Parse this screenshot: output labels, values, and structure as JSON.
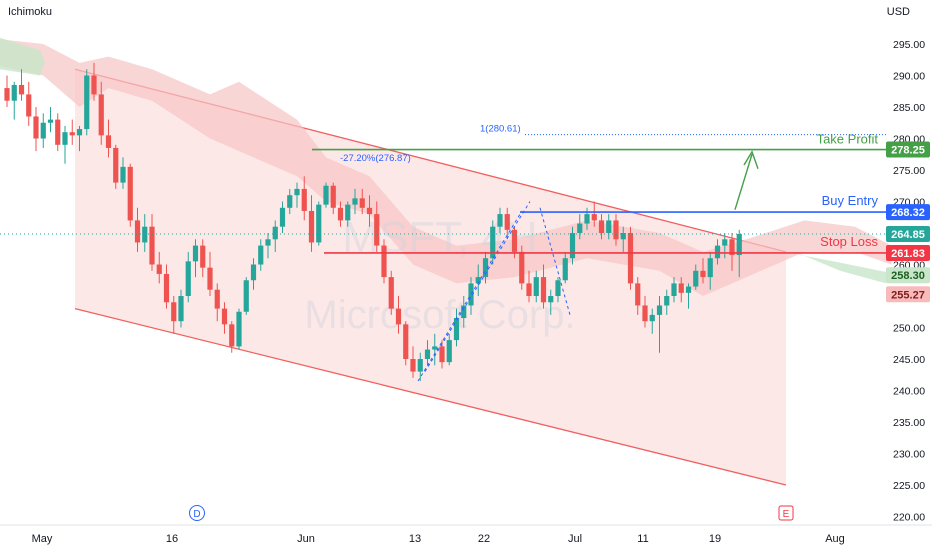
{
  "indicator": "Ichimoku",
  "currency": "USD",
  "watermark": {
    "symbol": "MSFT, 4H",
    "company": "Microsoft Corp."
  },
  "chart_data": {
    "type": "candlestick",
    "price_range": [
      218,
      300
    ],
    "y_ticks": [
      220,
      225,
      230,
      235,
      240,
      245,
      250,
      255,
      260,
      265,
      270,
      275,
      280,
      285,
      290,
      295
    ],
    "x_ticks": [
      "May",
      "16",
      "Jun",
      "13",
      "22",
      "Jul",
      "11",
      "19",
      "Aug"
    ],
    "colors": {
      "up": "#26a69a",
      "down": "#ef5350",
      "cloud": "#f7c5c5",
      "channel_fill": "#fde5e5",
      "channel_line": "#f06060",
      "buy": "#2962ff",
      "stop": "#f23645",
      "target": "#43a047",
      "fib": "#2962ff"
    },
    "channel": {
      "upper": [
        {
          "date": "May 6",
          "price": 291
        },
        {
          "date": "Jul 29",
          "price": 262
        }
      ],
      "lower": [
        {
          "date": "May 6",
          "price": 253
        },
        {
          "date": "Jul 29",
          "price": 225
        }
      ]
    },
    "cloud_upper": [
      [
        -3,
        292
      ],
      [
        5,
        290
      ],
      [
        10,
        285
      ],
      [
        14,
        288
      ],
      [
        20,
        286
      ],
      [
        28,
        280
      ],
      [
        32,
        278
      ],
      [
        40,
        274
      ],
      [
        44,
        270
      ],
      [
        50,
        268
      ],
      [
        56,
        260
      ],
      [
        62,
        257
      ],
      [
        70,
        258
      ],
      [
        80,
        261
      ],
      [
        90,
        259
      ],
      [
        96,
        255
      ],
      [
        102,
        258
      ],
      [
        110,
        262
      ],
      [
        117,
        262
      ],
      [
        122,
        260
      ]
    ],
    "cloud_lower": [
      [
        -3,
        296
      ],
      [
        5,
        295
      ],
      [
        10,
        292
      ],
      [
        14,
        293
      ],
      [
        20,
        291
      ],
      [
        28,
        287
      ],
      [
        32,
        289
      ],
      [
        40,
        283
      ],
      [
        44,
        277
      ],
      [
        50,
        274
      ],
      [
        56,
        266
      ],
      [
        62,
        263
      ],
      [
        70,
        264
      ],
      [
        80,
        267
      ],
      [
        90,
        265
      ],
      [
        96,
        262
      ],
      [
        102,
        264
      ],
      [
        110,
        267
      ],
      [
        117,
        266
      ],
      [
        122,
        263
      ]
    ],
    "candles": [
      [
        288.0,
        290.0,
        285.0,
        286.0
      ],
      [
        286.0,
        289.0,
        283.0,
        288.5
      ],
      [
        288.5,
        291.0,
        286.0,
        287.0
      ],
      [
        287.0,
        289.0,
        282.0,
        283.5
      ],
      [
        283.5,
        285.0,
        278.0,
        280.0
      ],
      [
        280.0,
        284.0,
        278.5,
        282.5
      ],
      [
        282.5,
        285.0,
        281.0,
        283.0
      ],
      [
        283.0,
        284.0,
        278.0,
        279.0
      ],
      [
        279.0,
        282.0,
        276.0,
        281.0
      ],
      [
        281.0,
        283.0,
        279.0,
        280.5
      ],
      [
        280.5,
        282.0,
        278.0,
        281.5
      ],
      [
        281.5,
        291.0,
        280.5,
        290.0
      ],
      [
        290.0,
        292.0,
        286.0,
        287.0
      ],
      [
        287.0,
        289.0,
        279.0,
        280.5
      ],
      [
        280.5,
        283.0,
        277.0,
        278.5
      ],
      [
        278.5,
        279.0,
        272.0,
        273.0
      ],
      [
        273.0,
        277.0,
        272.0,
        275.5
      ],
      [
        275.5,
        276.0,
        266.0,
        267.0
      ],
      [
        267.0,
        269.0,
        262.0,
        263.5
      ],
      [
        263.5,
        268.0,
        262.0,
        266.0
      ],
      [
        266.0,
        268.0,
        259.0,
        260.0
      ],
      [
        260.0,
        262.0,
        257.0,
        258.5
      ],
      [
        258.5,
        260.0,
        253.0,
        254.0
      ],
      [
        254.0,
        255.0,
        249.0,
        251.0
      ],
      [
        251.0,
        256.0,
        250.0,
        255.0
      ],
      [
        255.0,
        262.0,
        254.0,
        260.5
      ],
      [
        260.5,
        264.0,
        258.0,
        263.0
      ],
      [
        263.0,
        264.0,
        258.0,
        259.5
      ],
      [
        259.5,
        262.0,
        255.0,
        256.0
      ],
      [
        256.0,
        257.0,
        251.0,
        253.0
      ],
      [
        253.0,
        254.0,
        249.0,
        250.5
      ],
      [
        250.5,
        251.0,
        246.0,
        247.0
      ],
      [
        247.0,
        253.0,
        246.5,
        252.5
      ],
      [
        252.5,
        258.0,
        252.0,
        257.5
      ],
      [
        257.5,
        261.0,
        256.0,
        260.0
      ],
      [
        260.0,
        264.0,
        259.0,
        263.0
      ],
      [
        263.0,
        265.0,
        261.0,
        264.0
      ],
      [
        264.0,
        267.0,
        262.0,
        266.0
      ],
      [
        266.0,
        270.0,
        265.0,
        269.0
      ],
      [
        269.0,
        272.0,
        268.0,
        271.0
      ],
      [
        271.0,
        273.0,
        269.0,
        272.0
      ],
      [
        272.0,
        274.0,
        267.0,
        268.5
      ],
      [
        268.5,
        271.0,
        262.0,
        263.5
      ],
      [
        263.5,
        270.0,
        263.0,
        269.5
      ],
      [
        269.5,
        273.0,
        269.0,
        272.5
      ],
      [
        272.5,
        273.0,
        268.0,
        269.0
      ],
      [
        269.0,
        270.0,
        266.0,
        267.0
      ],
      [
        267.0,
        270.0,
        266.0,
        269.5
      ],
      [
        269.5,
        272.0,
        268.0,
        270.5
      ],
      [
        270.5,
        272.0,
        268.0,
        269.0
      ],
      [
        269.0,
        271.0,
        266.0,
        268.0
      ],
      [
        268.0,
        270.0,
        262.0,
        263.0
      ],
      [
        263.0,
        264.0,
        257.0,
        258.0
      ],
      [
        258.0,
        259.0,
        252.0,
        253.0
      ],
      [
        253.0,
        255.0,
        249.0,
        250.5
      ],
      [
        250.5,
        251.0,
        244.0,
        245.0
      ],
      [
        245.0,
        247.0,
        242.0,
        243.0
      ],
      [
        243.0,
        246.0,
        241.5,
        245.0
      ],
      [
        245.0,
        248.0,
        244.0,
        246.5
      ],
      [
        246.5,
        249.0,
        244.0,
        247.0
      ],
      [
        247.0,
        248.0,
        243.5,
        244.5
      ],
      [
        244.5,
        249.0,
        244.0,
        248.0
      ],
      [
        248.0,
        253.0,
        247.0,
        251.5
      ],
      [
        251.5,
        255.0,
        250.0,
        253.5
      ],
      [
        253.5,
        258.0,
        252.0,
        257.0
      ],
      [
        257.0,
        260.0,
        255.0,
        258.0
      ],
      [
        258.0,
        262.0,
        257.0,
        261.0
      ],
      [
        261.0,
        267.0,
        260.0,
        266.0
      ],
      [
        266.0,
        269.0,
        265.0,
        268.0
      ],
      [
        268.0,
        269.0,
        264.0,
        265.5
      ],
      [
        265.5,
        266.0,
        261.0,
        262.0
      ],
      [
        262.0,
        263.0,
        256.0,
        257.0
      ],
      [
        257.0,
        259.0,
        254.0,
        255.0
      ],
      [
        255.0,
        259.0,
        254.0,
        258.0
      ],
      [
        258.0,
        260.0,
        253.0,
        254.0
      ],
      [
        254.0,
        256.0,
        252.0,
        255.0
      ],
      [
        255.0,
        258.0,
        254.0,
        257.5
      ],
      [
        257.5,
        262.0,
        257.0,
        261.0
      ],
      [
        261.0,
        266.0,
        260.0,
        265.0
      ],
      [
        265.0,
        268.0,
        264.0,
        266.5
      ],
      [
        266.5,
        269.0,
        265.5,
        268.0
      ],
      [
        268.0,
        270.0,
        266.0,
        267.0
      ],
      [
        267.0,
        268.0,
        264.0,
        265.0
      ],
      [
        265.0,
        268.0,
        264.0,
        267.0
      ],
      [
        267.0,
        268.0,
        263.0,
        264.0
      ],
      [
        264.0,
        266.0,
        262.0,
        265.0
      ],
      [
        265.0,
        266.0,
        256.0,
        257.0
      ],
      [
        257.0,
        258.0,
        252.0,
        253.5
      ],
      [
        253.5,
        255.0,
        250.0,
        251.0
      ],
      [
        251.0,
        253.0,
        249.0,
        252.0
      ],
      [
        252.0,
        255.0,
        246.0,
        253.5
      ],
      [
        253.5,
        256.0,
        252.0,
        255.0
      ],
      [
        255.0,
        258.0,
        254.0,
        257.0
      ],
      [
        257.0,
        258.0,
        254.0,
        255.5
      ],
      [
        255.5,
        257.0,
        253.0,
        256.5
      ],
      [
        256.5,
        260.0,
        256.0,
        259.0
      ],
      [
        259.0,
        261.0,
        257.0,
        258.0
      ],
      [
        258.0,
        262.0,
        256.0,
        261.0
      ],
      [
        261.0,
        264.0,
        260.0,
        263.0
      ],
      [
        263.0,
        265.0,
        261.0,
        264.0
      ],
      [
        264.0,
        265.0,
        259.0,
        261.5
      ],
      [
        261.5,
        265.5,
        258.0,
        264.85
      ]
    ],
    "levels": {
      "take_profit": {
        "label": "Take Profit",
        "price": 278.25,
        "price_text": "278.25"
      },
      "buy_entry": {
        "label": "Buy Entry",
        "price": 268.32,
        "price_text": "268.32"
      },
      "stop_loss": {
        "label": "Stop Loss",
        "price": 261.83,
        "price_text": "261.83"
      }
    },
    "price_tags": [
      {
        "text": "264.85",
        "price": 264.85,
        "color": "#26a69a",
        "text_color": "#ffffff"
      },
      {
        "text": "258.30",
        "price": 258.3,
        "color": "#c8e6c9",
        "text_color": "#1b5e20"
      },
      {
        "text": "255.27",
        "price": 255.27,
        "color": "#f8bbbb",
        "text_color": "#7f1d1d"
      }
    ],
    "fib": {
      "level_1": "1(280.61)",
      "level_1_price": 280.61,
      "level_neg": "-27.20%(276.87)",
      "level_neg_price": 276.87
    },
    "markers": {
      "d": "D",
      "e": "E"
    }
  }
}
